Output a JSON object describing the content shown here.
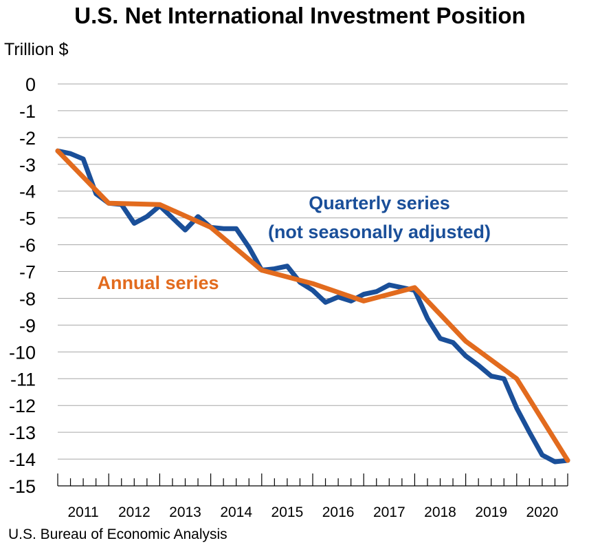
{
  "chart_data": {
    "type": "line",
    "title": "U.S. Net International Investment Position",
    "ylabel": "Trillion $",
    "source": "U.S. Bureau of Economic Analysis",
    "ylim": [
      -15,
      0
    ],
    "yticks": [
      0,
      -1,
      -2,
      -3,
      -4,
      -5,
      -6,
      -7,
      -8,
      -9,
      -10,
      -11,
      -12,
      -13,
      -14,
      -15
    ],
    "xticks": [
      "2011",
      "2012",
      "2013",
      "2014",
      "2015",
      "2016",
      "2017",
      "2018",
      "2019",
      "2020"
    ],
    "grid": true,
    "series": [
      {
        "name": "Quarterly series (not seasonally adjusted)",
        "label_lines": [
          "Quarterly series",
          "(not seasonally adjusted)"
        ],
        "color": "#1a4f99",
        "x": [
          "2010Q4",
          "2011Q1",
          "2011Q2",
          "2011Q3",
          "2011Q4",
          "2012Q1",
          "2012Q2",
          "2012Q3",
          "2012Q4",
          "2013Q1",
          "2013Q2",
          "2013Q3",
          "2013Q4",
          "2014Q1",
          "2014Q2",
          "2014Q3",
          "2014Q4",
          "2015Q1",
          "2015Q2",
          "2015Q3",
          "2015Q4",
          "2016Q1",
          "2016Q2",
          "2016Q3",
          "2016Q4",
          "2017Q1",
          "2017Q2",
          "2017Q3",
          "2017Q4",
          "2018Q1",
          "2018Q2",
          "2018Q3",
          "2018Q4",
          "2019Q1",
          "2019Q2",
          "2019Q3",
          "2019Q4",
          "2020Q1",
          "2020Q2",
          "2020Q3",
          "2020Q4"
        ],
        "values": [
          -2.5,
          -2.6,
          -2.8,
          -4.1,
          -4.45,
          -4.5,
          -5.2,
          -4.95,
          -4.55,
          -5.0,
          -5.45,
          -4.95,
          -5.35,
          -5.4,
          -5.4,
          -6.1,
          -6.95,
          -6.9,
          -6.8,
          -7.4,
          -7.7,
          -8.15,
          -7.95,
          -8.1,
          -7.85,
          -7.75,
          -7.5,
          -7.6,
          -7.7,
          -8.75,
          -9.5,
          -9.65,
          -10.15,
          -10.5,
          -10.9,
          -11.0,
          -12.1,
          -13.0,
          -13.85,
          -14.1,
          -14.05
        ],
        "values_note": ""
      },
      {
        "name": "Annual series",
        "label_lines": [
          "Annual series"
        ],
        "color": "#e26b1e",
        "x": [
          "2010",
          "2011",
          "2012",
          "2013",
          "2014",
          "2015",
          "2016",
          "2017",
          "2018",
          "2019",
          "2020"
        ],
        "values": [
          -2.5,
          -4.45,
          -4.5,
          -5.35,
          -6.95,
          -7.45,
          -8.1,
          -7.6,
          -9.6,
          -11.0,
          -14.05
        ]
      }
    ]
  }
}
